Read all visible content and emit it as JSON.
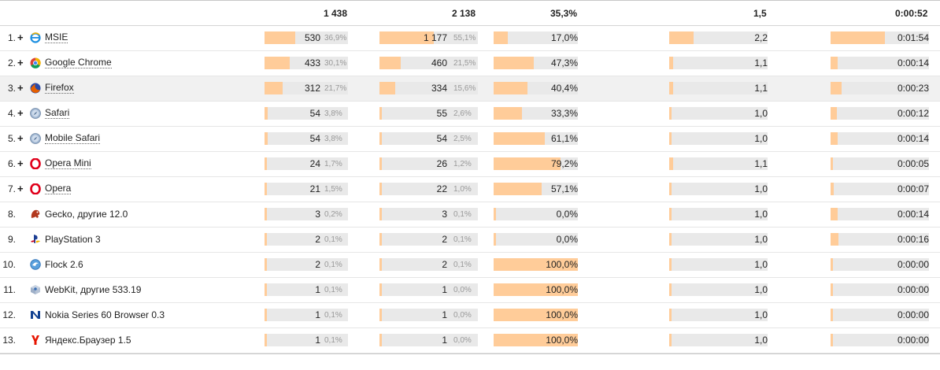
{
  "colors": {
    "bar_fill": "#ffcc99",
    "bar_track": "#e9e9e9",
    "row_highlight": "#f1f1f1"
  },
  "totals": {
    "visits": "1 438",
    "pageviews": "2 138",
    "bounce": "35,3%",
    "depth": "1,5",
    "time": "0:00:52"
  },
  "rows": [
    {
      "num": "1.",
      "expandable": true,
      "icon": "ie-icon",
      "name": "MSIE",
      "link": true,
      "visits": "530",
      "visits_pct": "36,9%",
      "visits_frac": 0.369,
      "pageviews": "1 177",
      "pageviews_pct": "55,1%",
      "pageviews_frac": 0.551,
      "bounce": "17,0%",
      "bounce_frac": 0.17,
      "depth": "2,2",
      "depth_frac": 0.25,
      "time": "0:01:54",
      "time_frac": 0.55
    },
    {
      "num": "2.",
      "expandable": true,
      "icon": "chrome-icon",
      "name": "Google Chrome",
      "link": true,
      "visits": "433",
      "visits_pct": "30,1%",
      "visits_frac": 0.301,
      "pageviews": "460",
      "pageviews_pct": "21,5%",
      "pageviews_frac": 0.215,
      "bounce": "47,3%",
      "bounce_frac": 0.473,
      "depth": "1,1",
      "depth_frac": 0.04,
      "time": "0:00:14",
      "time_frac": 0.07
    },
    {
      "num": "3.",
      "expandable": true,
      "icon": "firefox-icon",
      "name": "Firefox",
      "link": true,
      "highlight": true,
      "visits": "312",
      "visits_pct": "21,7%",
      "visits_frac": 0.217,
      "pageviews": "334",
      "pageviews_pct": "15,6%",
      "pageviews_frac": 0.156,
      "bounce": "40,4%",
      "bounce_frac": 0.404,
      "depth": "1,1",
      "depth_frac": 0.04,
      "time": "0:00:23",
      "time_frac": 0.11
    },
    {
      "num": "4.",
      "expandable": true,
      "icon": "safari-icon",
      "name": "Safari",
      "link": true,
      "visits": "54",
      "visits_pct": "3,8%",
      "visits_frac": 0.038,
      "pageviews": "55",
      "pageviews_pct": "2,6%",
      "pageviews_frac": 0.026,
      "bounce": "33,3%",
      "bounce_frac": 0.333,
      "depth": "1,0",
      "depth_frac": 0.02,
      "time": "0:00:12",
      "time_frac": 0.06
    },
    {
      "num": "5.",
      "expandable": true,
      "icon": "safari-icon",
      "name": "Mobile Safari",
      "link": true,
      "visits": "54",
      "visits_pct": "3,8%",
      "visits_frac": 0.038,
      "pageviews": "54",
      "pageviews_pct": "2,5%",
      "pageviews_frac": 0.025,
      "bounce": "61,1%",
      "bounce_frac": 0.611,
      "depth": "1,0",
      "depth_frac": 0.02,
      "time": "0:00:14",
      "time_frac": 0.07
    },
    {
      "num": "6.",
      "expandable": true,
      "icon": "opera-icon",
      "name": "Opera Mini",
      "link": true,
      "visits": "24",
      "visits_pct": "1,7%",
      "visits_frac": 0.017,
      "pageviews": "26",
      "pageviews_pct": "1,2%",
      "pageviews_frac": 0.012,
      "bounce": "79,2%",
      "bounce_frac": 0.792,
      "depth": "1,1",
      "depth_frac": 0.04,
      "time": "0:00:05",
      "time_frac": 0.02
    },
    {
      "num": "7.",
      "expandable": true,
      "icon": "opera-icon",
      "name": "Opera",
      "link": true,
      "visits": "21",
      "visits_pct": "1,5%",
      "visits_frac": 0.015,
      "pageviews": "22",
      "pageviews_pct": "1,0%",
      "pageviews_frac": 0.01,
      "bounce": "57,1%",
      "bounce_frac": 0.571,
      "depth": "1,0",
      "depth_frac": 0.02,
      "time": "0:00:07",
      "time_frac": 0.03
    },
    {
      "num": "8.",
      "expandable": false,
      "icon": "gecko-icon",
      "name": "Gecko, другие 12.0",
      "link": false,
      "visits": "3",
      "visits_pct": "0,2%",
      "visits_frac": 0.002,
      "pageviews": "3",
      "pageviews_pct": "0,1%",
      "pageviews_frac": 0.001,
      "bounce": "0,0%",
      "bounce_frac": 0.0,
      "depth": "1,0",
      "depth_frac": 0.02,
      "time": "0:00:14",
      "time_frac": 0.07
    },
    {
      "num": "9.",
      "expandable": false,
      "icon": "playstation-icon",
      "name": "PlayStation 3",
      "link": false,
      "visits": "2",
      "visits_pct": "0,1%",
      "visits_frac": 0.001,
      "pageviews": "2",
      "pageviews_pct": "0,1%",
      "pageviews_frac": 0.001,
      "bounce": "0,0%",
      "bounce_frac": 0.0,
      "depth": "1,0",
      "depth_frac": 0.02,
      "time": "0:00:16",
      "time_frac": 0.08
    },
    {
      "num": "10.",
      "expandable": false,
      "icon": "flock-icon",
      "name": "Flock 2.6",
      "link": false,
      "visits": "2",
      "visits_pct": "0,1%",
      "visits_frac": 0.001,
      "pageviews": "2",
      "pageviews_pct": "0,1%",
      "pageviews_frac": 0.001,
      "bounce": "100,0%",
      "bounce_frac": 1.0,
      "depth": "1,0",
      "depth_frac": 0.02,
      "time": "0:00:00",
      "time_frac": 0.0
    },
    {
      "num": "11.",
      "expandable": false,
      "icon": "webkit-icon",
      "name": "WebKit, другие 533.19",
      "link": false,
      "visits": "1",
      "visits_pct": "0,1%",
      "visits_frac": 0.001,
      "pageviews": "1",
      "pageviews_pct": "0,0%",
      "pageviews_frac": 0.0,
      "bounce": "100,0%",
      "bounce_frac": 1.0,
      "depth": "1,0",
      "depth_frac": 0.02,
      "time": "0:00:00",
      "time_frac": 0.0
    },
    {
      "num": "12.",
      "expandable": false,
      "icon": "nokia-icon",
      "name": "Nokia Series 60 Browser 0.3",
      "link": false,
      "visits": "1",
      "visits_pct": "0,1%",
      "visits_frac": 0.001,
      "pageviews": "1",
      "pageviews_pct": "0,0%",
      "pageviews_frac": 0.0,
      "bounce": "100,0%",
      "bounce_frac": 1.0,
      "depth": "1,0",
      "depth_frac": 0.02,
      "time": "0:00:00",
      "time_frac": 0.0
    },
    {
      "num": "13.",
      "expandable": false,
      "icon": "yandex-icon",
      "name": "Яндекс.Браузер 1.5",
      "link": false,
      "visits": "1",
      "visits_pct": "0,1%",
      "visits_frac": 0.001,
      "pageviews": "1",
      "pageviews_pct": "0,0%",
      "pageviews_frac": 0.0,
      "bounce": "100,0%",
      "bounce_frac": 1.0,
      "depth": "1,0",
      "depth_frac": 0.02,
      "time": "0:00:00",
      "time_frac": 0.0
    }
  ]
}
